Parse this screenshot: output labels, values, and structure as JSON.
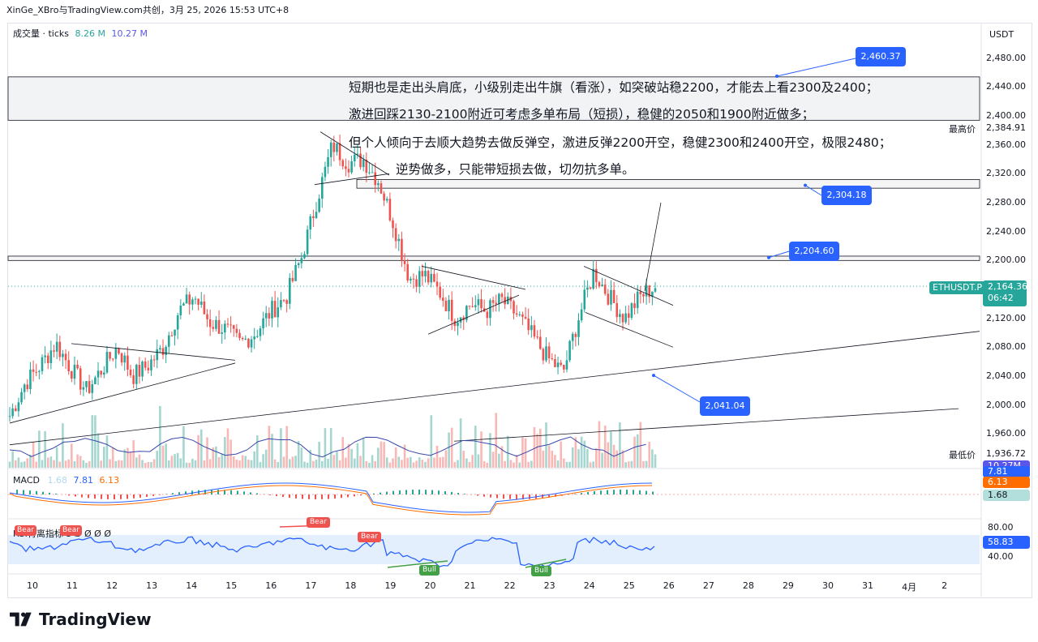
{
  "header": {
    "text": "XinGe_XBro与TradingView.com共创，3月 25, 2026 15:53 UTC+8"
  },
  "volume_legend": {
    "label": "成交量 · ticks",
    "v1": "8.26 M",
    "v2": "10.27 M"
  },
  "price_axis": {
    "currency": "USDT",
    "ticks": [
      "2,480.00",
      "2,440.00",
      "2,400.00",
      "2,360.00",
      "2,320.00",
      "2,280.00",
      "2,240.00",
      "2,200.00",
      "2,160.00",
      "2,120.00",
      "2,080.00",
      "2,040.00",
      "2,000.00",
      "1,960.00"
    ],
    "high_label": "最高价",
    "high_value": "2,384.91",
    "low_label": "最低价",
    "low_value": "1,936.72",
    "symbol": "ETHUSDT.P",
    "last_price": "2,164.36",
    "countdown": "06:42",
    "vol_badge": "10.27M",
    "macd_a": "7.81",
    "macd_b": "6.13",
    "macd_c": "1.68",
    "rsi_ticks": [
      "80.00",
      "40.00"
    ],
    "rsi_value": "58.83"
  },
  "annotations": [
    "短期也是走出头肩底，小级别走出牛旗（看涨），如突破站稳2200，才能去上看2300及2400；",
    "激进回踩2130-2100附近可考虑多单布局（短损），稳健的2050和1900附近做多；",
    "但个人倾向于去顺大趋势去做反弹空，激进反弹2200开空，稳健2300和2400开空，极限2480；",
    "逆势做多，只能带短损去做，切勿抗多单。"
  ],
  "price_boxes": [
    "2,460.37",
    "2,304.18",
    "2,204.60",
    "2,041.04"
  ],
  "macd_legend": {
    "label": "MACD",
    "v1": "1.68",
    "v2": "7.81",
    "v3": "6.13"
  },
  "rsi_legend": {
    "label": "RSI背离指标",
    "values": "3 Ø Ø Ø Ø"
  },
  "rsi_tags": [
    "Bear",
    "Bear",
    "Bear",
    "Bear",
    "Bull",
    "Bull"
  ],
  "time_axis": [
    "10",
    "11",
    "12",
    "13",
    "14",
    "15",
    "16",
    "17",
    "18",
    "19",
    "20",
    "21",
    "22",
    "23",
    "24",
    "25",
    "26",
    "27",
    "28",
    "29",
    "30",
    "31",
    "4月",
    "2"
  ],
  "footer": {
    "brand": "TradingView"
  },
  "colors": {
    "up": "#26a69a",
    "down": "#ef5350",
    "accent": "#2962ff",
    "macd_signal": "#ff6d00"
  },
  "chart_data": {
    "type": "candlestick",
    "symbol": "ETHUSDT.P",
    "quote": "USDT",
    "x_labels": [
      "10",
      "11",
      "12",
      "13",
      "14",
      "15",
      "16",
      "17",
      "18",
      "19",
      "20",
      "21",
      "22",
      "23",
      "24",
      "25"
    ],
    "ylim": [
      1936.72,
      2490
    ],
    "path_close": [
      1985,
      2030,
      2055,
      2085,
      2050,
      2020,
      2050,
      2080,
      2040,
      2055,
      2080,
      2130,
      2150,
      2115,
      2105,
      2085,
      2100,
      2130,
      2150,
      2205,
      2285,
      2360,
      2335,
      2340,
      2310,
      2250,
      2175,
      2180,
      2155,
      2120,
      2140,
      2130,
      2145,
      2125,
      2095,
      2065,
      2045,
      2120,
      2185,
      2150,
      2120,
      2150,
      2164
    ],
    "high": 2384.91,
    "low": 1936.72,
    "last": 2164.36,
    "levels": [
      2460.37,
      2304.18,
      2204.6,
      2041.04
    ],
    "macd": {
      "hist": 1.68,
      "macd": 7.81,
      "signal": 6.13
    },
    "rsi": 58.83
  }
}
